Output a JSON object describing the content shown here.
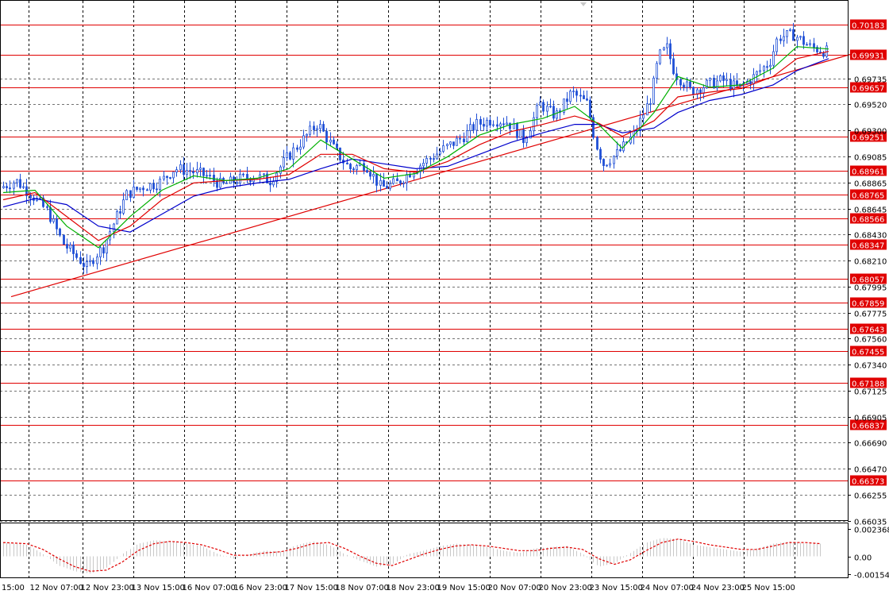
{
  "chart_data": {
    "type": "candlestick",
    "colors": {
      "background": "#ffffff",
      "candle": "#1f4fd6",
      "level_line": "#e00000",
      "level_label_bg": "#e00000",
      "ma_fast": "#00b000",
      "ma_mid": "#e00000",
      "ma_slow": "#0000cc",
      "trendline": "#e00000",
      "grid": "#000000",
      "osc_bars": "#c8c8c8",
      "osc_signal": "#e00000"
    },
    "ylim": [
      0.66035,
      0.7035
    ],
    "y_ticks": [
      "0.69735",
      "0.69520",
      "0.69300",
      "0.69085",
      "0.68865",
      "0.68645",
      "0.68430",
      "0.68210",
      "0.67995",
      "0.67775",
      "0.67560",
      "0.67340",
      "0.67125",
      "0.66905",
      "0.66690",
      "0.66470",
      "0.66255",
      "0.66035"
    ],
    "levels": [
      "0.70183",
      "0.69931",
      "0.69657",
      "0.69251",
      "0.68961",
      "0.68765",
      "0.68566",
      "0.68347",
      "0.68057",
      "0.67859",
      "0.67643",
      "0.67455",
      "0.67188",
      "0.66837",
      "0.66373"
    ],
    "x_labels": [
      "15:00",
      "12 Nov 07:00",
      "12 Nov 23:00",
      "13 Nov 15:00",
      "16 Nov 07:00",
      "16 Nov 23:00",
      "17 Nov 15:00",
      "18 Nov 07:00",
      "18 Nov 23:00",
      "19 Nov 15:00",
      "20 Nov 07:00",
      "20 Nov 23:00",
      "23 Nov 15:00",
      "24 Nov 07:00",
      "24 Nov 23:00",
      "25 Nov 15:00"
    ],
    "price_path": [
      [
        0,
        0.6882
      ],
      [
        2,
        0.6888
      ],
      [
        4,
        0.6876
      ],
      [
        6,
        0.6862
      ],
      [
        8,
        0.6835
      ],
      [
        10,
        0.6822
      ],
      [
        11,
        0.6815
      ],
      [
        12,
        0.6826
      ],
      [
        13,
        0.6832
      ],
      [
        14,
        0.6848
      ],
      [
        16,
        0.6877
      ],
      [
        18,
        0.6883
      ],
      [
        20,
        0.6886
      ],
      [
        22,
        0.6898
      ],
      [
        24,
        0.6896
      ],
      [
        26,
        0.6892
      ],
      [
        28,
        0.6884
      ],
      [
        30,
        0.6889
      ],
      [
        32,
        0.6892
      ],
      [
        34,
        0.6888
      ],
      [
        36,
        0.6906
      ],
      [
        38,
        0.6921
      ],
      [
        40,
        0.6936
      ],
      [
        42,
        0.6915
      ],
      [
        44,
        0.6898
      ],
      [
        46,
        0.6902
      ],
      [
        48,
        0.6882
      ],
      [
        50,
        0.6886
      ],
      [
        52,
        0.6897
      ],
      [
        54,
        0.6906
      ],
      [
        56,
        0.6915
      ],
      [
        58,
        0.6923
      ],
      [
        60,
        0.6935
      ],
      [
        62,
        0.6939
      ],
      [
        64,
        0.6937
      ],
      [
        66,
        0.6922
      ],
      [
        68,
        0.6952
      ],
      [
        70,
        0.6942
      ],
      [
        72,
        0.6962
      ],
      [
        74,
        0.6952
      ],
      [
        75,
        0.692
      ],
      [
        76,
        0.6902
      ],
      [
        78,
        0.6912
      ],
      [
        80,
        0.6928
      ],
      [
        82,
        0.6958
      ],
      [
        83,
        0.6992
      ],
      [
        84,
        0.6999
      ],
      [
        85,
        0.6978
      ],
      [
        87,
        0.6963
      ],
      [
        89,
        0.6968
      ],
      [
        91,
        0.6972
      ],
      [
        93,
        0.6965
      ],
      [
        95,
        0.6975
      ],
      [
        97,
        0.6988
      ],
      [
        98,
        0.7008
      ],
      [
        100,
        0.701
      ],
      [
        102,
        0.7
      ],
      [
        104,
        0.6996
      ]
    ],
    "indicators": {
      "ma_fast": [
        [
          0,
          0.6878
        ],
        [
          4,
          0.688
        ],
        [
          8,
          0.685
        ],
        [
          12,
          0.6832
        ],
        [
          16,
          0.6858
        ],
        [
          20,
          0.688
        ],
        [
          24,
          0.6892
        ],
        [
          28,
          0.6888
        ],
        [
          32,
          0.689
        ],
        [
          36,
          0.6898
        ],
        [
          40,
          0.6922
        ],
        [
          44,
          0.6906
        ],
        [
          48,
          0.689
        ],
        [
          52,
          0.6894
        ],
        [
          56,
          0.6908
        ],
        [
          60,
          0.6926
        ],
        [
          64,
          0.6935
        ],
        [
          68,
          0.694
        ],
        [
          72,
          0.695
        ],
        [
          75,
          0.6935
        ],
        [
          78,
          0.6915
        ],
        [
          82,
          0.6945
        ],
        [
          85,
          0.6975
        ],
        [
          89,
          0.6966
        ],
        [
          93,
          0.6968
        ],
        [
          97,
          0.6982
        ],
        [
          100,
          0.7
        ],
        [
          104,
          0.6998
        ]
      ],
      "ma_mid": [
        [
          0,
          0.6872
        ],
        [
          4,
          0.6878
        ],
        [
          8,
          0.6858
        ],
        [
          12,
          0.6838
        ],
        [
          16,
          0.685
        ],
        [
          20,
          0.6872
        ],
        [
          24,
          0.6886
        ],
        [
          28,
          0.6888
        ],
        [
          32,
          0.6889
        ],
        [
          36,
          0.6893
        ],
        [
          40,
          0.691
        ],
        [
          44,
          0.691
        ],
        [
          48,
          0.6898
        ],
        [
          52,
          0.6895
        ],
        [
          56,
          0.6904
        ],
        [
          60,
          0.6918
        ],
        [
          64,
          0.6929
        ],
        [
          68,
          0.6935
        ],
        [
          72,
          0.6942
        ],
        [
          75,
          0.6936
        ],
        [
          78,
          0.6925
        ],
        [
          82,
          0.6938
        ],
        [
          85,
          0.6958
        ],
        [
          89,
          0.6962
        ],
        [
          93,
          0.6965
        ],
        [
          97,
          0.6975
        ],
        [
          100,
          0.699
        ],
        [
          104,
          0.6996
        ]
      ],
      "ma_slow": [
        [
          0,
          0.6866
        ],
        [
          4,
          0.6873
        ],
        [
          8,
          0.6868
        ],
        [
          12,
          0.685
        ],
        [
          16,
          0.6845
        ],
        [
          20,
          0.686
        ],
        [
          24,
          0.6875
        ],
        [
          28,
          0.6882
        ],
        [
          32,
          0.6886
        ],
        [
          36,
          0.6889
        ],
        [
          40,
          0.6898
        ],
        [
          44,
          0.6906
        ],
        [
          48,
          0.6902
        ],
        [
          52,
          0.6898
        ],
        [
          56,
          0.69
        ],
        [
          60,
          0.691
        ],
        [
          64,
          0.692
        ],
        [
          68,
          0.6928
        ],
        [
          72,
          0.6935
        ],
        [
          75,
          0.6935
        ],
        [
          78,
          0.6928
        ],
        [
          82,
          0.6932
        ],
        [
          85,
          0.6945
        ],
        [
          89,
          0.6955
        ],
        [
          93,
          0.696
        ],
        [
          97,
          0.6968
        ],
        [
          100,
          0.698
        ],
        [
          104,
          0.699
        ]
      ]
    },
    "trendline": [
      [
        1,
        0.6791
      ],
      [
        107,
        0.6994
      ]
    ],
    "oscillator": {
      "ticks": [
        "0.002368",
        "0.00",
        "-0.001541"
      ],
      "ylim": [
        -0.0019,
        0.0028
      ],
      "bars": [
        [
          0,
          0.0012
        ],
        [
          3,
          0.001
        ],
        [
          5,
          0.0002
        ],
        [
          7,
          -0.0008
        ],
        [
          9,
          -0.0013
        ],
        [
          11,
          -0.0015
        ],
        [
          13,
          -0.001
        ],
        [
          15,
          0.0002
        ],
        [
          17,
          0.0011
        ],
        [
          19,
          0.0014
        ],
        [
          21,
          0.0013
        ],
        [
          23,
          0.0011
        ],
        [
          25,
          0.0009
        ],
        [
          27,
          0.0002
        ],
        [
          29,
          -0.0002
        ],
        [
          31,
          0.0002
        ],
        [
          33,
          0.0005
        ],
        [
          35,
          0.0004
        ],
        [
          37,
          0.001
        ],
        [
          39,
          0.0013
        ],
        [
          41,
          0.001
        ],
        [
          43,
          0.0002
        ],
        [
          45,
          -0.0004
        ],
        [
          47,
          -0.0009
        ],
        [
          49,
          -0.0007
        ],
        [
          51,
          0.0002
        ],
        [
          53,
          0.0005
        ],
        [
          55,
          0.0009
        ],
        [
          57,
          0.0011
        ],
        [
          59,
          0.001
        ],
        [
          61,
          0.0008
        ],
        [
          63,
          0.0005
        ],
        [
          65,
          0.0003
        ],
        [
          67,
          0.0007
        ],
        [
          69,
          0.0008
        ],
        [
          71,
          0.0009
        ],
        [
          73,
          0.0002
        ],
        [
          75,
          -0.0009
        ],
        [
          77,
          -0.0006
        ],
        [
          79,
          0.0003
        ],
        [
          81,
          0.0012
        ],
        [
          83,
          0.0016
        ],
        [
          85,
          0.0015
        ],
        [
          87,
          0.001
        ],
        [
          89,
          0.0008
        ],
        [
          91,
          0.0006
        ],
        [
          93,
          0.0004
        ],
        [
          95,
          0.0007
        ],
        [
          97,
          0.0011
        ],
        [
          99,
          0.0013
        ],
        [
          101,
          0.0011
        ],
        [
          103,
          0.0011
        ]
      ],
      "signal": [
        [
          0,
          0.0012
        ],
        [
          3,
          0.0011
        ],
        [
          5,
          0.0006
        ],
        [
          7,
          -0.0002
        ],
        [
          9,
          -0.0009
        ],
        [
          11,
          -0.0013
        ],
        [
          13,
          -0.0012
        ],
        [
          15,
          -0.0005
        ],
        [
          17,
          0.0005
        ],
        [
          19,
          0.0011
        ],
        [
          21,
          0.0013
        ],
        [
          23,
          0.0012
        ],
        [
          25,
          0.001
        ],
        [
          27,
          0.0006
        ],
        [
          29,
          0.0001
        ],
        [
          31,
          0.0001
        ],
        [
          33,
          0.0003
        ],
        [
          35,
          0.0004
        ],
        [
          37,
          0.0007
        ],
        [
          39,
          0.0011
        ],
        [
          41,
          0.0012
        ],
        [
          43,
          0.0007
        ],
        [
          45,
          0.0
        ],
        [
          47,
          -0.0006
        ],
        [
          49,
          -0.0008
        ],
        [
          51,
          -0.0003
        ],
        [
          53,
          0.0002
        ],
        [
          55,
          0.0006
        ],
        [
          57,
          0.0009
        ],
        [
          59,
          0.001
        ],
        [
          61,
          0.0009
        ],
        [
          63,
          0.0007
        ],
        [
          65,
          0.0005
        ],
        [
          67,
          0.0005
        ],
        [
          69,
          0.0007
        ],
        [
          71,
          0.0008
        ],
        [
          73,
          0.0006
        ],
        [
          75,
          -0.0002
        ],
        [
          77,
          -0.0007
        ],
        [
          79,
          -0.0003
        ],
        [
          81,
          0.0005
        ],
        [
          83,
          0.0012
        ],
        [
          85,
          0.0015
        ],
        [
          87,
          0.0013
        ],
        [
          89,
          0.001
        ],
        [
          91,
          0.0008
        ],
        [
          93,
          0.0006
        ],
        [
          95,
          0.0006
        ],
        [
          97,
          0.0009
        ],
        [
          99,
          0.0012
        ],
        [
          101,
          0.0012
        ],
        [
          103,
          0.0011
        ]
      ]
    }
  }
}
